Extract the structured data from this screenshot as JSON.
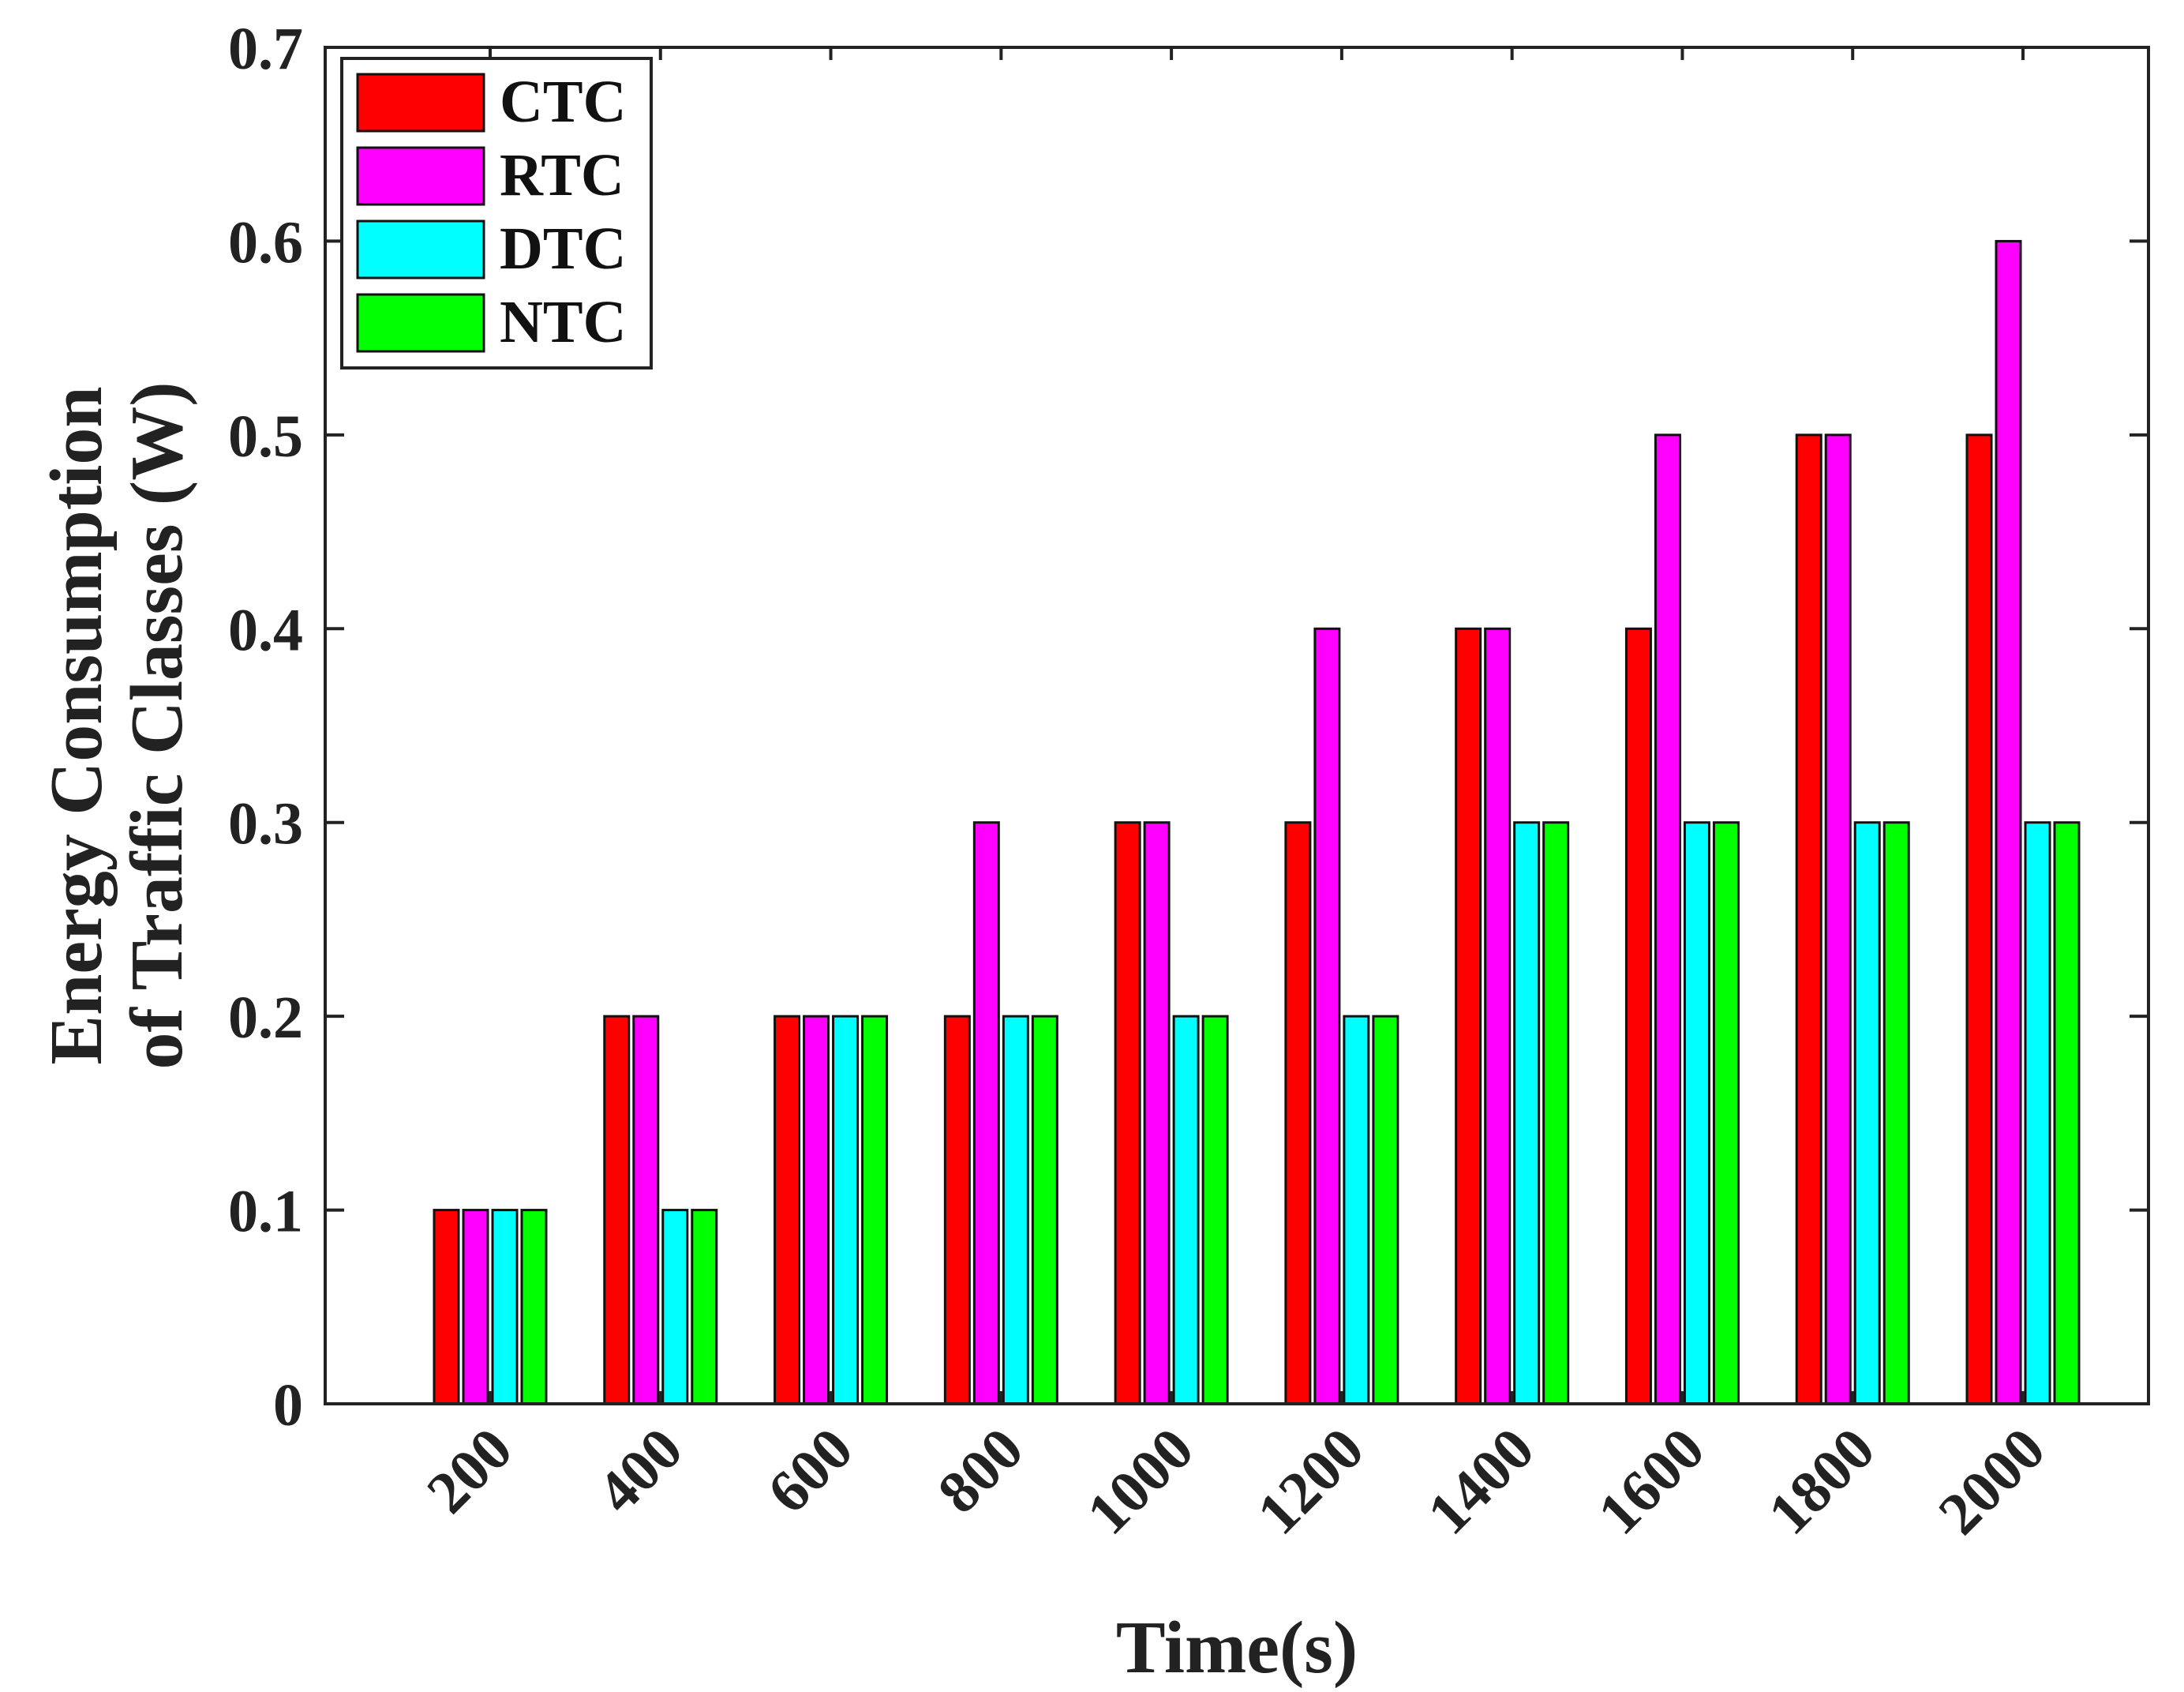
{
  "chart_data": {
    "type": "bar",
    "title": "",
    "xlabel": "Time(s)",
    "ylabel_lines": [
      "Energy Consumption",
      "of Traffic Classes (W)"
    ],
    "categories": [
      "200",
      "400",
      "600",
      "800",
      "1000",
      "1200",
      "1400",
      "1600",
      "1800",
      "2000"
    ],
    "yticks": [
      "0",
      "0.1",
      "0.2",
      "0.3",
      "0.4",
      "0.5",
      "0.6",
      "0.7"
    ],
    "ylim": [
      0,
      0.7
    ],
    "grid": false,
    "legend_position": "top-left",
    "series": [
      {
        "name": "CTC",
        "color": "#ff0000",
        "values": [
          0.1,
          0.2,
          0.2,
          0.2,
          0.3,
          0.3,
          0.4,
          0.4,
          0.5,
          0.5
        ]
      },
      {
        "name": "RTC",
        "color": "#ff00ff",
        "values": [
          0.1,
          0.2,
          0.2,
          0.3,
          0.3,
          0.4,
          0.4,
          0.5,
          0.5,
          0.6
        ]
      },
      {
        "name": "DTC",
        "color": "#00ffff",
        "values": [
          0.1,
          0.1,
          0.2,
          0.2,
          0.2,
          0.2,
          0.3,
          0.3,
          0.3,
          0.3
        ]
      },
      {
        "name": "NTC",
        "color": "#00ff00",
        "values": [
          0.1,
          0.1,
          0.2,
          0.2,
          0.2,
          0.2,
          0.3,
          0.3,
          0.3,
          0.3
        ]
      }
    ]
  }
}
